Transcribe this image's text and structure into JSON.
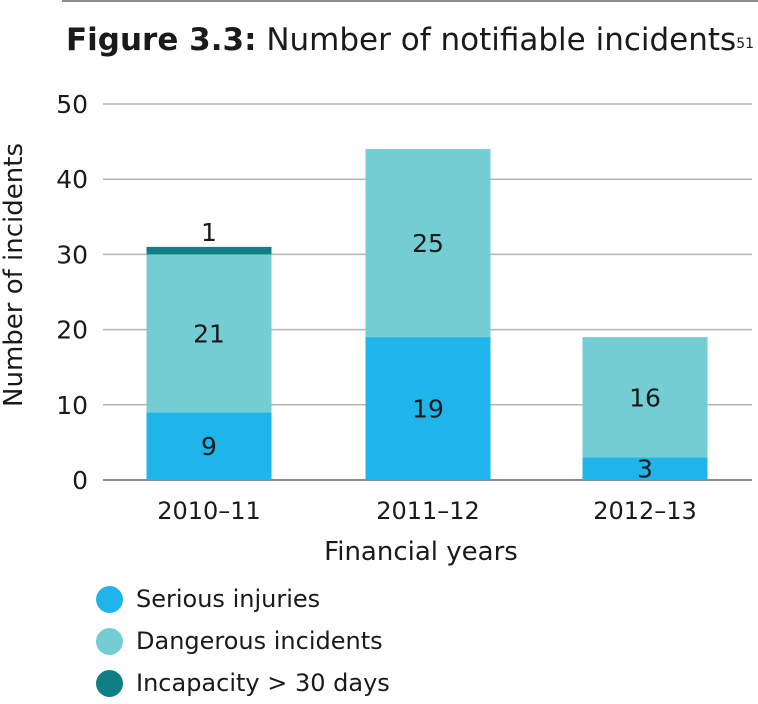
{
  "figure": {
    "label": "Figure 3.3:",
    "title": "Number of notifiable incidents",
    "footnote": "51"
  },
  "chart_data": {
    "type": "bar",
    "stacked": true,
    "categories": [
      "2010–11",
      "2011–12",
      "2012–13"
    ],
    "series": [
      {
        "name": "Serious injuries",
        "values": [
          9,
          19,
          3
        ],
        "color": "#1fb4ea"
      },
      {
        "name": "Dangerous incidents",
        "values": [
          21,
          25,
          16
        ],
        "color": "#73cdd2"
      },
      {
        "name": "Incapacity > 30 days",
        "values": [
          1,
          0,
          0
        ],
        "color": "#0f7f86"
      }
    ],
    "xlabel": "Financial years",
    "ylabel": "Number of incidents",
    "ylim": [
      0,
      50
    ],
    "yticks": [
      0,
      10,
      20,
      30,
      40,
      50
    ],
    "grid": true,
    "legend_position": "bottom-left"
  }
}
